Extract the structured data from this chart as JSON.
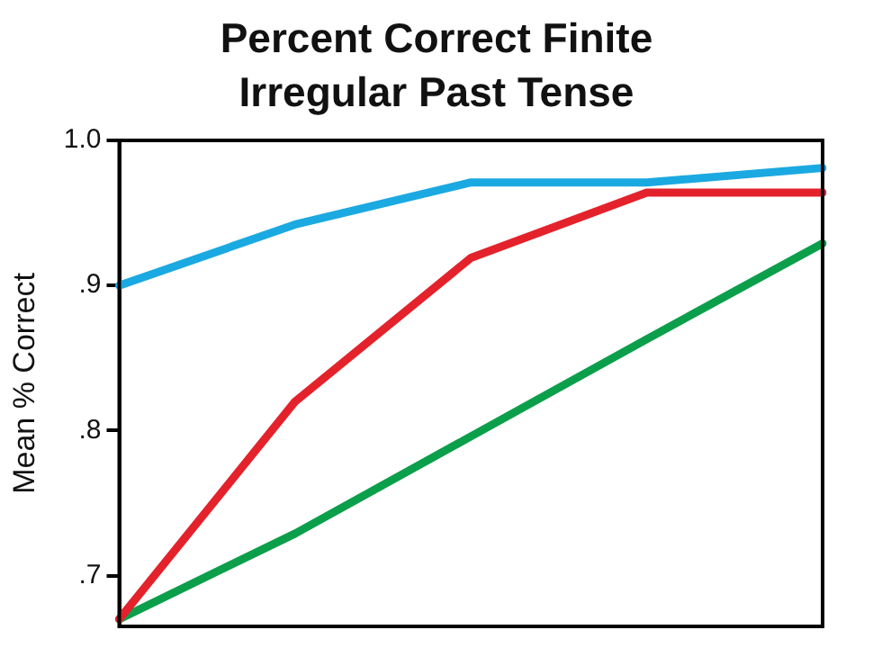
{
  "chart_data": {
    "type": "line",
    "title": "Percent Correct Finite Irregular Past Tense",
    "ylabel": "Mean % Correct",
    "categories": [
      null,
      null,
      null,
      null,
      null
    ],
    "series": [
      {
        "color": "#1ba9e1",
        "values": [
          0.9,
          0.942,
          0.971,
          0.971,
          0.981
        ]
      },
      {
        "color": "#e4222b",
        "values": [
          0.67,
          0.82,
          0.919,
          0.964,
          0.964
        ]
      },
      {
        "color": "#0c9f4b",
        "values": [
          0.67,
          0.729,
          0.796,
          0.863,
          0.929
        ]
      }
    ],
    "ylim": [
      0.665,
      1.0
    ],
    "yticks": [
      {
        "value": 0.7,
        "label": ".7"
      },
      {
        "value": 0.8,
        "label": ".8"
      },
      {
        "value": 0.9,
        "label": ".9"
      },
      {
        "value": 1.0,
        "label": "1.0"
      }
    ],
    "tick_labels": "y",
    "grid": false,
    "legend": false,
    "marker": "none",
    "line_style": "solid"
  }
}
